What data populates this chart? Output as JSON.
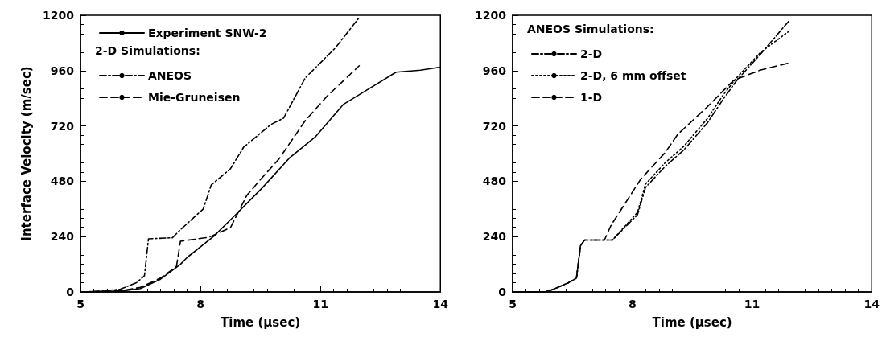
{
  "chart_data": [
    {
      "type": "line",
      "xlabel": "Time (μsec)",
      "ylabel": "Interface Velocity (m/sec)",
      "legend_title": "2-D Simulations:",
      "xlim": [
        5,
        14
      ],
      "xticks": [
        5,
        8,
        11,
        14
      ],
      "ylim": [
        0,
        1200
      ],
      "yticks": [
        0,
        240,
        480,
        720,
        960,
        1200
      ],
      "legend": "top left",
      "grid": false,
      "marker": "none",
      "series": [
        {
          "name": "Experiment SNW-2",
          "color": "#000000",
          "line_style": "solid",
          "x": [
            5,
            6,
            6.5,
            7,
            7.5,
            7.67,
            8.35,
            8.88,
            9.56,
            10.22,
            10.88,
            11.57,
            12.23,
            12.89,
            13.5,
            14
          ],
          "values": [
            0,
            3,
            15,
            55,
            120,
            150,
            244,
            335,
            454,
            580,
            674,
            813,
            883,
            953,
            962,
            975
          ]
        },
        {
          "name": "ANEOS",
          "color": "#000000",
          "line_style": "dashdot",
          "x": [
            5,
            5.5,
            6,
            6.4,
            6.6,
            6.7,
            7.3,
            7.47,
            8.07,
            8.27,
            8.75,
            9.08,
            9.76,
            10.08,
            10.62,
            11.37,
            11.97
          ],
          "values": [
            0,
            3,
            12,
            40,
            70,
            230,
            235,
            265,
            360,
            464,
            534,
            628,
            726,
            754,
            928,
            1058,
            1190
          ]
        },
        {
          "name": "Mie-Gruneisen",
          "color": "#000000",
          "line_style": "dashed",
          "x": [
            5,
            6,
            6.5,
            7,
            7.4,
            7.5,
            8.21,
            8.75,
            9.16,
            9.56,
            9.96,
            10.62,
            11.16,
            11.97
          ],
          "values": [
            0,
            5,
            20,
            60,
            110,
            220,
            237,
            279,
            419,
            499,
            576,
            743,
            848,
            981
          ]
        }
      ]
    },
    {
      "type": "line",
      "xlabel": "Time (μsec)",
      "legend_title": "ANEOS Simulations:",
      "xlim": [
        5,
        14
      ],
      "xticks": [
        5,
        8,
        11,
        14
      ],
      "ylim": [
        0,
        1200
      ],
      "yticks": [
        0,
        240,
        480,
        720,
        960,
        1200
      ],
      "legend": "top left",
      "grid": false,
      "marker": "none",
      "series": [
        {
          "name": "2-D",
          "color": "#000000",
          "line_style": "dashdot",
          "x": [
            5,
            5.8,
            6,
            6.4,
            6.6,
            6.7,
            6.8,
            7.5,
            8.13,
            8.33,
            8.82,
            9.28,
            9.88,
            10.28,
            10.62,
            11.22,
            11.95
          ],
          "values": [
            0,
            0,
            10,
            40,
            60,
            200,
            225,
            225,
            335,
            453,
            544,
            614,
            733,
            837,
            918,
            1033,
            1180
          ]
        },
        {
          "name": "2-D, 6 mm offset",
          "color": "#000000",
          "line_style": "dotted",
          "x": [
            5,
            5.8,
            6,
            6.4,
            6.6,
            6.7,
            6.8,
            7.5,
            8.13,
            8.33,
            8.82,
            9.28,
            9.88,
            10.28,
            10.62,
            11.22,
            11.95
          ],
          "values": [
            0,
            0,
            10,
            40,
            60,
            200,
            225,
            225,
            345,
            468,
            560,
            630,
            752,
            855,
            930,
            1040,
            1134
          ]
        },
        {
          "name": "1-D",
          "color": "#000000",
          "line_style": "dashed",
          "x": [
            5,
            5.8,
            6,
            6.4,
            6.6,
            6.7,
            6.8,
            7.3,
            7.47,
            8.21,
            8.82,
            9.14,
            9.88,
            10.54,
            11.22,
            11.95
          ],
          "values": [
            0,
            0,
            10,
            40,
            60,
            200,
            225,
            225,
            290,
            489,
            604,
            684,
            803,
            918,
            963,
            994
          ]
        }
      ]
    }
  ]
}
